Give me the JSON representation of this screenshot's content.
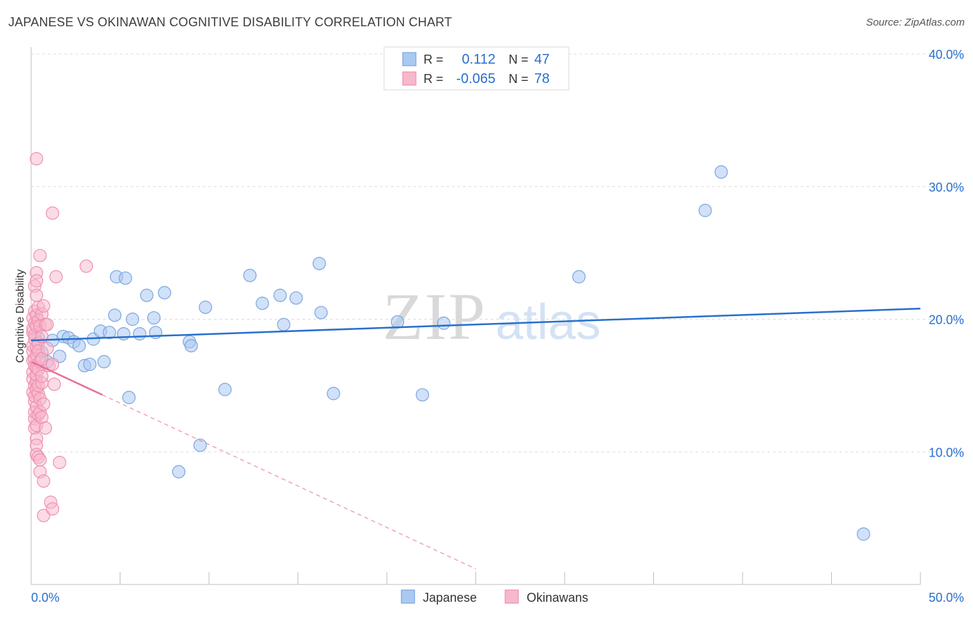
{
  "chart_data": {
    "type": "scatter",
    "title": "JAPANESE VS OKINAWAN COGNITIVE DISABILITY CORRELATION CHART",
    "source": "Source: ZipAtlas.com",
    "ylabel": "Cognitive Disability",
    "xlim": [
      0,
      50
    ],
    "ylim": [
      0,
      40
    ],
    "x_tick_labels": {
      "left": "0.0%",
      "right": "50.0%"
    },
    "y_ticks": [
      {
        "value": 10,
        "label": "10.0%"
      },
      {
        "value": 20,
        "label": "20.0%"
      },
      {
        "value": 30,
        "label": "30.0%"
      },
      {
        "value": 40,
        "label": "40.0%"
      }
    ],
    "watermark": {
      "part1": "ZIP",
      "part2": "atlas"
    },
    "colors": {
      "japanese_fill": "#a9c9f2",
      "japanese_stroke": "#7aa6e0",
      "japanese_line": "#2a6fcc",
      "okinawan_fill": "#f7b8cc",
      "okinawan_stroke": "#ee8fae",
      "okinawan_line": "#e8709a",
      "value_text": "#2a6fcc"
    },
    "legend": {
      "rows": [
        {
          "r_label": "R =",
          "r_value": "0.112",
          "n_label": "N =",
          "n_value": "47"
        },
        {
          "r_label": "R =",
          "r_value": "-0.065",
          "n_label": "N =",
          "n_value": "78"
        }
      ]
    },
    "bottom_legend": [
      "Japanese",
      "Okinawans"
    ],
    "series": [
      {
        "name": "Japanese",
        "trend": {
          "x0": 0,
          "y0": 18.4,
          "x1": 50,
          "y1": 20.8
        },
        "points": [
          [
            0.4,
            18.6
          ],
          [
            0.6,
            17.5
          ],
          [
            0.9,
            16.8
          ],
          [
            1.2,
            18.4
          ],
          [
            1.6,
            17.2
          ],
          [
            1.8,
            18.7
          ],
          [
            2.1,
            18.6
          ],
          [
            2.4,
            18.3
          ],
          [
            2.7,
            18.0
          ],
          [
            3.0,
            16.5
          ],
          [
            3.3,
            16.6
          ],
          [
            3.5,
            18.5
          ],
          [
            3.9,
            19.1
          ],
          [
            4.1,
            16.8
          ],
          [
            4.4,
            19.0
          ],
          [
            4.7,
            20.3
          ],
          [
            4.8,
            23.2
          ],
          [
            5.2,
            18.9
          ],
          [
            5.3,
            23.1
          ],
          [
            5.5,
            14.1
          ],
          [
            5.7,
            20.0
          ],
          [
            6.1,
            18.9
          ],
          [
            6.5,
            21.8
          ],
          [
            6.9,
            20.1
          ],
          [
            7.0,
            19.0
          ],
          [
            7.5,
            22.0
          ],
          [
            8.3,
            8.5
          ],
          [
            8.9,
            18.3
          ],
          [
            9.0,
            18.0
          ],
          [
            9.5,
            10.5
          ],
          [
            9.8,
            20.9
          ],
          [
            10.9,
            14.7
          ],
          [
            12.3,
            23.3
          ],
          [
            13.0,
            21.2
          ],
          [
            14.0,
            21.8
          ],
          [
            14.2,
            19.6
          ],
          [
            14.9,
            21.6
          ],
          [
            16.2,
            24.2
          ],
          [
            16.3,
            20.5
          ],
          [
            17.0,
            14.4
          ],
          [
            20.6,
            19.8
          ],
          [
            22.0,
            14.3
          ],
          [
            23.2,
            19.7
          ],
          [
            30.8,
            23.2
          ],
          [
            37.9,
            28.2
          ],
          [
            38.8,
            31.1
          ],
          [
            46.8,
            3.8
          ]
        ]
      },
      {
        "name": "Okinawans",
        "trend": {
          "x0": 0,
          "y0": 16.8,
          "x1": 4.0,
          "y1": 14.3,
          "x_dash_end": 25.0
        },
        "points": [
          [
            0.1,
            17.6
          ],
          [
            0.1,
            14.5
          ],
          [
            0.1,
            19.0
          ],
          [
            0.1,
            16.0
          ],
          [
            0.1,
            15.5
          ],
          [
            0.1,
            19.3
          ],
          [
            0.1,
            18.0
          ],
          [
            0.1,
            16.9
          ],
          [
            0.1,
            20.1
          ],
          [
            0.2,
            22.5
          ],
          [
            0.2,
            16.5
          ],
          [
            0.2,
            13.8
          ],
          [
            0.2,
            12.5
          ],
          [
            0.2,
            18.5
          ],
          [
            0.2,
            19.7
          ],
          [
            0.2,
            17.0
          ],
          [
            0.2,
            15.0
          ],
          [
            0.2,
            11.8
          ],
          [
            0.2,
            20.6
          ],
          [
            0.2,
            14.2
          ],
          [
            0.2,
            13.0
          ],
          [
            0.2,
            18.8
          ],
          [
            0.3,
            11.0
          ],
          [
            0.3,
            16.3
          ],
          [
            0.3,
            17.3
          ],
          [
            0.3,
            23.5
          ],
          [
            0.3,
            19.5
          ],
          [
            0.3,
            15.3
          ],
          [
            0.3,
            21.8
          ],
          [
            0.3,
            12.0
          ],
          [
            0.3,
            14.7
          ],
          [
            0.3,
            10.5
          ],
          [
            0.3,
            17.9
          ],
          [
            0.3,
            13.4
          ],
          [
            0.3,
            22.9
          ],
          [
            0.3,
            20.3
          ],
          [
            0.3,
            32.1
          ],
          [
            0.3,
            9.8
          ],
          [
            0.3,
            15.8
          ],
          [
            0.4,
            16.2
          ],
          [
            0.4,
            18.2
          ],
          [
            0.4,
            14.4
          ],
          [
            0.4,
            19.9
          ],
          [
            0.4,
            12.8
          ],
          [
            0.4,
            9.6
          ],
          [
            0.4,
            17.6
          ],
          [
            0.4,
            15.0
          ],
          [
            0.4,
            20.9
          ],
          [
            0.5,
            13.0
          ],
          [
            0.5,
            24.8
          ],
          [
            0.5,
            8.5
          ],
          [
            0.5,
            9.4
          ],
          [
            0.5,
            19.5
          ],
          [
            0.5,
            16.8
          ],
          [
            0.5,
            14.0
          ],
          [
            0.6,
            17.0
          ],
          [
            0.6,
            12.6
          ],
          [
            0.6,
            20.4
          ],
          [
            0.6,
            15.2
          ],
          [
            0.6,
            18.7
          ],
          [
            0.6,
            15.7
          ],
          [
            0.7,
            13.6
          ],
          [
            0.7,
            21.0
          ],
          [
            0.7,
            7.8
          ],
          [
            0.7,
            5.2
          ],
          [
            0.8,
            19.6
          ],
          [
            0.8,
            11.8
          ],
          [
            0.9,
            19.6
          ],
          [
            0.9,
            17.8
          ],
          [
            1.0,
            16.5
          ],
          [
            1.1,
            6.2
          ],
          [
            1.2,
            5.7
          ],
          [
            1.2,
            16.6
          ],
          [
            1.2,
            28.0
          ],
          [
            1.3,
            15.1
          ],
          [
            1.4,
            23.2
          ],
          [
            1.6,
            9.2
          ],
          [
            3.1,
            24.0
          ]
        ]
      }
    ]
  }
}
